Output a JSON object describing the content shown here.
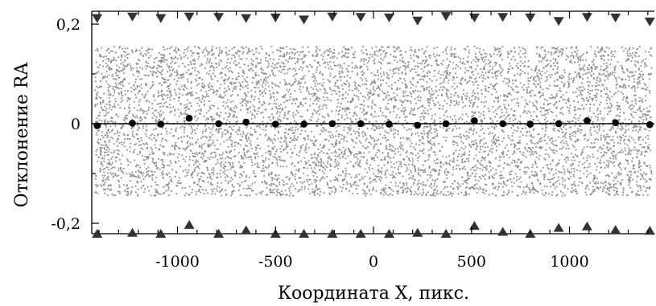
{
  "chart_data": {
    "type": "scatter",
    "title": "",
    "xlabel": "Координата X, пикс.",
    "ylabel": "Отклонение RA",
    "xlim": [
      -1430,
      1430
    ],
    "ylim": [
      -0.225,
      0.225
    ],
    "x_ticks": [
      -1000,
      -500,
      0,
      500,
      1000
    ],
    "x_tick_labels": [
      "-1000",
      "-500",
      "0",
      "500",
      "1000"
    ],
    "y_ticks": [
      -0.2,
      0,
      0.2
    ],
    "y_tick_labels": [
      "-0,2",
      "0",
      "0,2"
    ],
    "grid": false,
    "legend": "none",
    "colors": {
      "points": "#8c8c8c",
      "means": "#000000",
      "limits": "#333333",
      "axis": "#000000"
    },
    "zero_line": 0,
    "scatter_band": {
      "x_range": [
        -1420,
        1420
      ],
      "y_range": [
        -0.145,
        0.155
      ]
    },
    "binned_means": {
      "x": [
        -1410,
        -1230,
        -1085,
        -940,
        -790,
        -650,
        -500,
        -355,
        -210,
        -65,
        80,
        225,
        370,
        515,
        660,
        800,
        945,
        1090,
        1235,
        1410
      ],
      "y": [
        -0.004,
        0.001,
        -0.001,
        0.011,
        0.0,
        0.003,
        -0.001,
        -0.001,
        0.0,
        0.0,
        -0.001,
        -0.003,
        0.0,
        0.006,
        0.0,
        -0.001,
        0.0,
        0.006,
        0.002,
        -0.002
      ]
    },
    "upper_outliers": {
      "x": [
        -1410,
        -1230,
        -1085,
        -940,
        -790,
        -650,
        -500,
        -355,
        -210,
        -65,
        80,
        225,
        370,
        515,
        660,
        800,
        945,
        1090,
        1235,
        1410
      ],
      "y": [
        0.212,
        0.215,
        0.212,
        0.215,
        0.214,
        0.212,
        0.213,
        0.209,
        0.215,
        0.214,
        0.213,
        0.207,
        0.216,
        0.213,
        0.214,
        0.213,
        0.206,
        0.214,
        0.213,
        0.205
      ]
    },
    "lower_outliers": {
      "x": [
        -1410,
        -1230,
        -1085,
        -940,
        -790,
        -650,
        -500,
        -355,
        -210,
        -65,
        80,
        225,
        370,
        515,
        660,
        800,
        945,
        1090,
        1235,
        1410
      ],
      "y": [
        -0.221,
        -0.219,
        -0.221,
        -0.203,
        -0.221,
        -0.214,
        -0.221,
        -0.221,
        -0.221,
        -0.221,
        -0.221,
        -0.219,
        -0.221,
        -0.205,
        -0.217,
        -0.221,
        -0.209,
        -0.206,
        -0.213,
        -0.215
      ]
    }
  }
}
